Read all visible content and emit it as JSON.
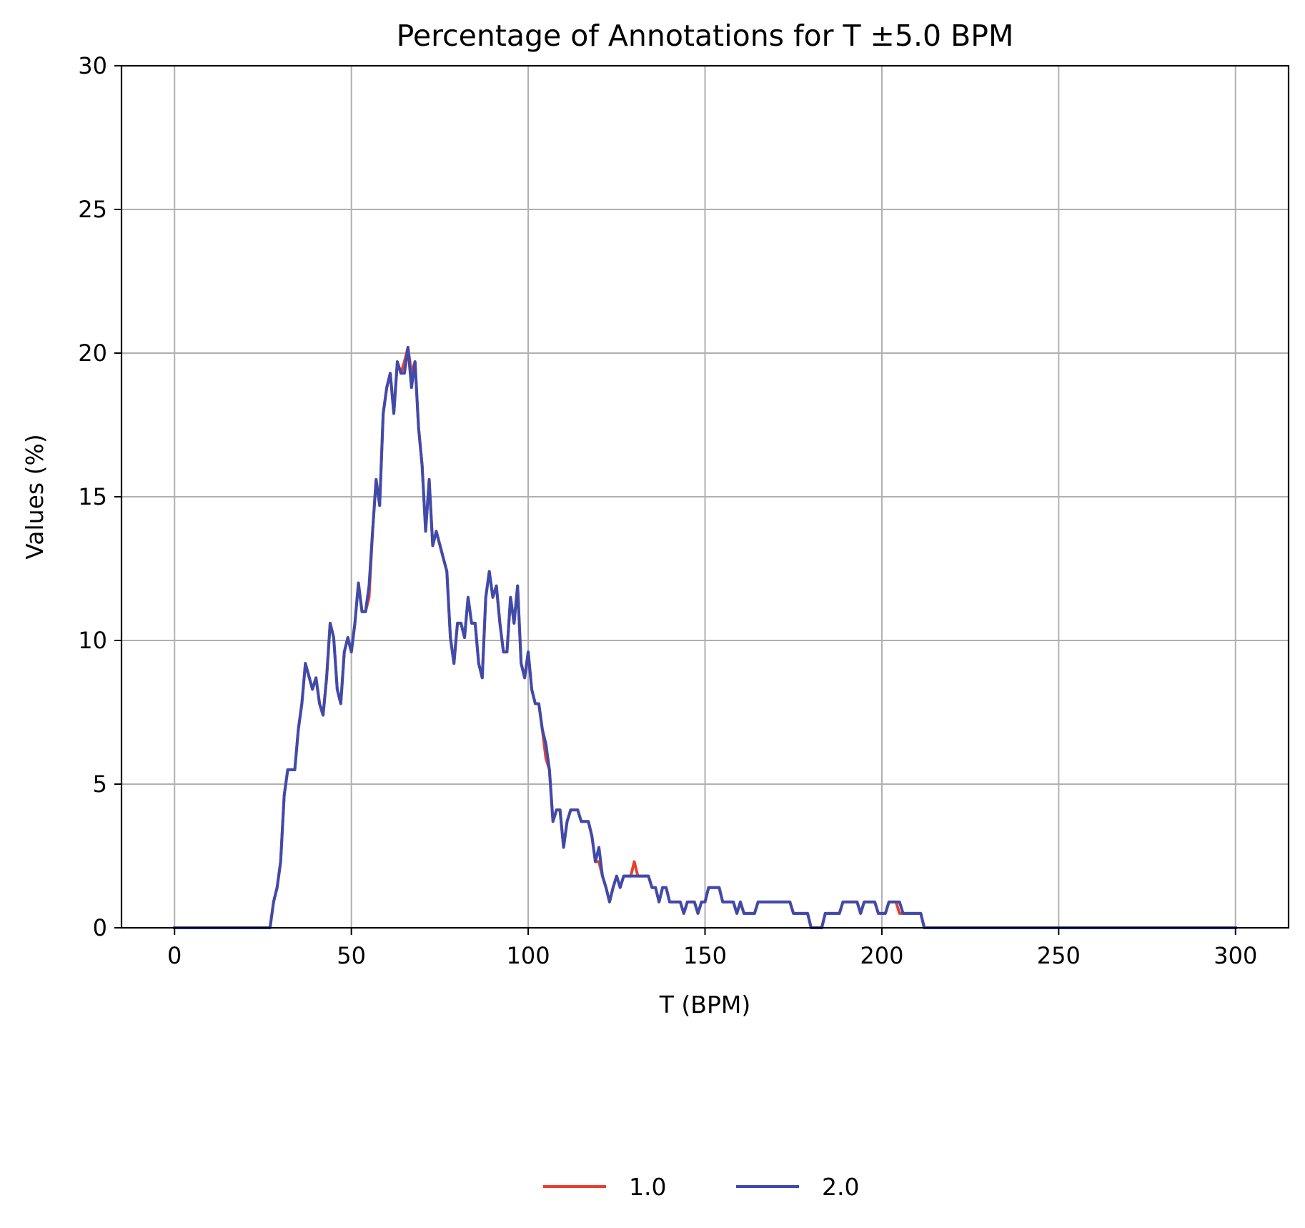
{
  "chart_data": {
    "type": "line",
    "title": "Percentage of Annotations for T ±5.0 BPM",
    "xlabel": "T (BPM)",
    "ylabel": "Values (%)",
    "xlim": [
      -15,
      315
    ],
    "ylim": [
      0,
      30
    ],
    "xticks": [
      0,
      50,
      100,
      150,
      200,
      250,
      300
    ],
    "yticks": [
      0,
      5,
      10,
      15,
      20,
      25,
      30
    ],
    "grid": true,
    "legend_position": "bottom-center",
    "series": [
      {
        "name": "1.0",
        "color": "#e8402f",
        "points": [
          [
            0,
            0
          ],
          [
            27,
            0
          ],
          [
            28,
            0.9
          ],
          [
            29,
            1.4
          ],
          [
            30,
            2.3
          ],
          [
            31,
            4.6
          ],
          [
            32,
            5.5
          ],
          [
            34,
            5.5
          ],
          [
            35,
            6.9
          ],
          [
            36,
            7.8
          ],
          [
            37,
            9.2
          ],
          [
            39,
            8.3
          ],
          [
            40,
            8.7
          ],
          [
            41,
            7.8
          ],
          [
            42,
            7.4
          ],
          [
            43,
            8.7
          ],
          [
            44,
            10.6
          ],
          [
            45,
            10.1
          ],
          [
            46,
            8.3
          ],
          [
            47,
            7.8
          ],
          [
            48,
            9.6
          ],
          [
            49,
            10.1
          ],
          [
            50,
            9.6
          ],
          [
            51,
            10.6
          ],
          [
            52,
            12.0
          ],
          [
            53,
            11.0
          ],
          [
            54,
            11.0
          ],
          [
            55,
            11.5
          ],
          [
            56,
            13.8
          ],
          [
            57,
            15.6
          ],
          [
            58,
            14.7
          ],
          [
            59,
            17.9
          ],
          [
            60,
            18.8
          ],
          [
            61,
            19.3
          ],
          [
            62,
            17.9
          ],
          [
            63,
            19.7
          ],
          [
            64,
            19.3
          ],
          [
            65,
            19.7
          ],
          [
            66,
            20.2
          ],
          [
            67,
            19.3
          ],
          [
            68,
            19.7
          ],
          [
            69,
            17.4
          ],
          [
            70,
            16.1
          ],
          [
            71,
            13.8
          ],
          [
            72,
            15.6
          ],
          [
            73,
            13.3
          ],
          [
            74,
            13.8
          ],
          [
            77,
            12.4
          ],
          [
            78,
            10.1
          ],
          [
            79,
            9.2
          ],
          [
            80,
            10.6
          ],
          [
            81,
            10.6
          ],
          [
            82,
            10.1
          ],
          [
            83,
            11.5
          ],
          [
            84,
            10.6
          ],
          [
            85,
            10.6
          ],
          [
            86,
            9.2
          ],
          [
            87,
            8.7
          ],
          [
            88,
            11.5
          ],
          [
            89,
            12.4
          ],
          [
            90,
            11.5
          ],
          [
            91,
            11.9
          ],
          [
            92,
            10.6
          ],
          [
            93,
            9.6
          ],
          [
            94,
            9.6
          ],
          [
            95,
            11.5
          ],
          [
            96,
            10.6
          ],
          [
            97,
            11.9
          ],
          [
            98,
            9.2
          ],
          [
            99,
            8.7
          ],
          [
            100,
            9.6
          ],
          [
            101,
            8.3
          ],
          [
            102,
            7.8
          ],
          [
            103,
            7.8
          ],
          [
            104,
            6.9
          ],
          [
            105,
            5.9
          ],
          [
            106,
            5.5
          ],
          [
            107,
            3.7
          ],
          [
            108,
            4.1
          ],
          [
            109,
            4.1
          ],
          [
            110,
            2.8
          ],
          [
            111,
            3.7
          ],
          [
            112,
            4.1
          ],
          [
            114,
            4.1
          ],
          [
            115,
            3.7
          ],
          [
            117,
            3.7
          ],
          [
            118,
            3.2
          ],
          [
            119,
            2.3
          ],
          [
            120,
            2.3
          ],
          [
            121,
            1.8
          ],
          [
            122,
            1.4
          ],
          [
            123,
            0.9
          ],
          [
            124,
            1.4
          ],
          [
            125,
            1.8
          ],
          [
            126,
            1.4
          ],
          [
            127,
            1.8
          ],
          [
            129,
            1.8
          ],
          [
            130,
            2.3
          ],
          [
            131,
            1.8
          ],
          [
            134,
            1.8
          ],
          [
            135,
            1.4
          ],
          [
            136,
            1.4
          ],
          [
            137,
            0.9
          ],
          [
            138,
            1.4
          ],
          [
            139,
            1.4
          ],
          [
            140,
            0.9
          ],
          [
            143,
            0.9
          ],
          [
            144,
            0.5
          ],
          [
            145,
            0.9
          ],
          [
            147,
            0.9
          ],
          [
            148,
            0.5
          ],
          [
            149,
            0.9
          ],
          [
            150,
            0.9
          ],
          [
            151,
            1.4
          ],
          [
            154,
            1.4
          ],
          [
            155,
            0.9
          ],
          [
            158,
            0.9
          ],
          [
            159,
            0.5
          ],
          [
            160,
            0.9
          ],
          [
            161,
            0.5
          ],
          [
            164,
            0.5
          ],
          [
            165,
            0.9
          ],
          [
            174,
            0.9
          ],
          [
            175,
            0.5
          ],
          [
            179,
            0.5
          ],
          [
            180,
            0
          ],
          [
            183,
            0
          ],
          [
            184,
            0.5
          ],
          [
            188,
            0.5
          ],
          [
            189,
            0.9
          ],
          [
            193,
            0.9
          ],
          [
            194,
            0.5
          ],
          [
            195,
            0.9
          ],
          [
            198,
            0.9
          ],
          [
            199,
            0.5
          ],
          [
            201,
            0.5
          ],
          [
            202,
            0.9
          ],
          [
            204,
            0.9
          ],
          [
            205,
            0.5
          ],
          [
            206,
            0.5
          ],
          [
            211,
            0.5
          ],
          [
            212,
            0
          ],
          [
            300,
            0
          ]
        ]
      },
      {
        "name": "2.0",
        "color": "#3f4bab",
        "points": [
          [
            0,
            0
          ],
          [
            27,
            0
          ],
          [
            28,
            0.9
          ],
          [
            29,
            1.4
          ],
          [
            30,
            2.3
          ],
          [
            31,
            4.6
          ],
          [
            32,
            5.5
          ],
          [
            34,
            5.5
          ],
          [
            35,
            6.9
          ],
          [
            36,
            7.8
          ],
          [
            37,
            9.2
          ],
          [
            39,
            8.3
          ],
          [
            40,
            8.7
          ],
          [
            41,
            7.8
          ],
          [
            42,
            7.4
          ],
          [
            43,
            8.7
          ],
          [
            44,
            10.6
          ],
          [
            45,
            10.1
          ],
          [
            46,
            8.3
          ],
          [
            47,
            7.8
          ],
          [
            48,
            9.6
          ],
          [
            49,
            10.1
          ],
          [
            50,
            9.6
          ],
          [
            51,
            10.6
          ],
          [
            52,
            12.0
          ],
          [
            53,
            11.0
          ],
          [
            54,
            11.0
          ],
          [
            55,
            11.9
          ],
          [
            56,
            13.8
          ],
          [
            57,
            15.6
          ],
          [
            58,
            14.7
          ],
          [
            59,
            17.9
          ],
          [
            60,
            18.8
          ],
          [
            61,
            19.3
          ],
          [
            62,
            17.9
          ],
          [
            63,
            19.7
          ],
          [
            64,
            19.3
          ],
          [
            65,
            19.3
          ],
          [
            66,
            20.2
          ],
          [
            67,
            18.8
          ],
          [
            68,
            19.7
          ],
          [
            69,
            17.4
          ],
          [
            70,
            16.1
          ],
          [
            71,
            13.8
          ],
          [
            72,
            15.6
          ],
          [
            73,
            13.3
          ],
          [
            74,
            13.8
          ],
          [
            77,
            12.4
          ],
          [
            78,
            10.1
          ],
          [
            79,
            9.2
          ],
          [
            80,
            10.6
          ],
          [
            81,
            10.6
          ],
          [
            82,
            10.1
          ],
          [
            83,
            11.5
          ],
          [
            84,
            10.6
          ],
          [
            85,
            10.6
          ],
          [
            86,
            9.2
          ],
          [
            87,
            8.7
          ],
          [
            88,
            11.5
          ],
          [
            89,
            12.4
          ],
          [
            90,
            11.5
          ],
          [
            91,
            11.9
          ],
          [
            92,
            10.6
          ],
          [
            93,
            9.6
          ],
          [
            94,
            9.6
          ],
          [
            95,
            11.5
          ],
          [
            96,
            10.6
          ],
          [
            97,
            11.9
          ],
          [
            98,
            9.2
          ],
          [
            99,
            8.7
          ],
          [
            100,
            9.6
          ],
          [
            101,
            8.3
          ],
          [
            102,
            7.8
          ],
          [
            103,
            7.8
          ],
          [
            104,
            6.9
          ],
          [
            105,
            6.4
          ],
          [
            106,
            5.5
          ],
          [
            107,
            3.7
          ],
          [
            108,
            4.1
          ],
          [
            109,
            4.1
          ],
          [
            110,
            2.8
          ],
          [
            111,
            3.7
          ],
          [
            112,
            4.1
          ],
          [
            114,
            4.1
          ],
          [
            115,
            3.7
          ],
          [
            117,
            3.7
          ],
          [
            118,
            3.2
          ],
          [
            119,
            2.3
          ],
          [
            120,
            2.8
          ],
          [
            121,
            1.8
          ],
          [
            122,
            1.4
          ],
          [
            123,
            0.9
          ],
          [
            124,
            1.4
          ],
          [
            125,
            1.8
          ],
          [
            126,
            1.4
          ],
          [
            127,
            1.8
          ],
          [
            134,
            1.8
          ],
          [
            135,
            1.4
          ],
          [
            136,
            1.4
          ],
          [
            137,
            0.9
          ],
          [
            138,
            1.4
          ],
          [
            139,
            1.4
          ],
          [
            140,
            0.9
          ],
          [
            143,
            0.9
          ],
          [
            144,
            0.5
          ],
          [
            145,
            0.9
          ],
          [
            147,
            0.9
          ],
          [
            148,
            0.5
          ],
          [
            149,
            0.9
          ],
          [
            150,
            0.9
          ],
          [
            151,
            1.4
          ],
          [
            154,
            1.4
          ],
          [
            155,
            0.9
          ],
          [
            158,
            0.9
          ],
          [
            159,
            0.5
          ],
          [
            160,
            0.9
          ],
          [
            161,
            0.5
          ],
          [
            164,
            0.5
          ],
          [
            165,
            0.9
          ],
          [
            174,
            0.9
          ],
          [
            175,
            0.5
          ],
          [
            179,
            0.5
          ],
          [
            180,
            0
          ],
          [
            183,
            0
          ],
          [
            184,
            0.5
          ],
          [
            188,
            0.5
          ],
          [
            189,
            0.9
          ],
          [
            193,
            0.9
          ],
          [
            194,
            0.5
          ],
          [
            195,
            0.9
          ],
          [
            198,
            0.9
          ],
          [
            199,
            0.5
          ],
          [
            201,
            0.5
          ],
          [
            202,
            0.9
          ],
          [
            205,
            0.9
          ],
          [
            206,
            0.5
          ],
          [
            211,
            0.5
          ],
          [
            212,
            0
          ],
          [
            300,
            0
          ]
        ]
      }
    ]
  }
}
